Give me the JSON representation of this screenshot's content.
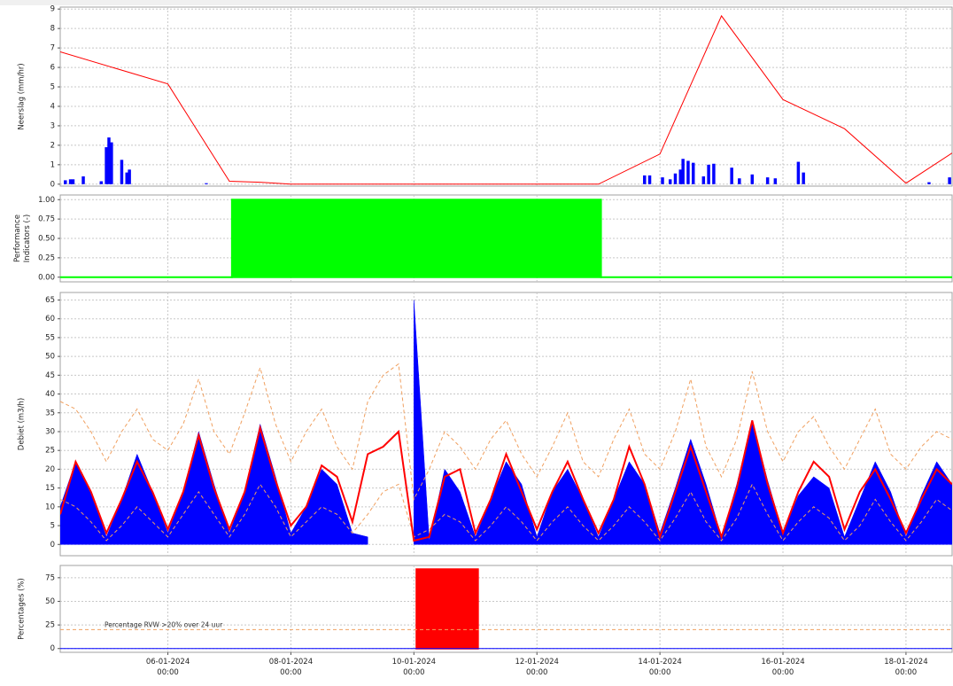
{
  "chart_data": [
    {
      "type": "combo",
      "ylabel": "Neerslag (mm/hr)",
      "ylim": [
        -0.1,
        9.1
      ],
      "yticks": [
        0,
        1,
        2,
        3,
        4,
        5,
        6,
        7,
        8,
        9
      ],
      "grid": true,
      "series": [
        {
          "type": "bar",
          "color": "#0000ff",
          "x": [
            "2024-01-04 08:00",
            "2024-01-04 10:00",
            "2024-01-04 11:00",
            "2024-01-04 15:00",
            "2024-01-04 22:00",
            "2024-01-05 00:00",
            "2024-01-05 01:00",
            "2024-01-05 02:00",
            "2024-01-05 06:00",
            "2024-01-05 08:00",
            "2024-01-05 09:00",
            "2024-01-06 15:00",
            "2024-01-13 18:00",
            "2024-01-13 20:00",
            "2024-01-14 01:00",
            "2024-01-14 04:00",
            "2024-01-14 06:00",
            "2024-01-14 08:00",
            "2024-01-14 09:00",
            "2024-01-14 11:00",
            "2024-01-14 13:00",
            "2024-01-14 17:00",
            "2024-01-14 19:00",
            "2024-01-14 21:00",
            "2024-01-15 04:00",
            "2024-01-15 07:00",
            "2024-01-15 12:00",
            "2024-01-15 18:00",
            "2024-01-15 21:00",
            "2024-01-16 06:00",
            "2024-01-16 08:00",
            "2024-01-18 09:00",
            "2024-01-18 17:00"
          ],
          "values": [
            0.2,
            0.25,
            0.25,
            0.4,
            0.15,
            1.9,
            2.4,
            2.15,
            1.25,
            0.6,
            0.75,
            0.05,
            0.45,
            0.45,
            0.35,
            0.25,
            0.55,
            0.75,
            1.3,
            1.2,
            1.1,
            0.4,
            1.0,
            1.05,
            0.85,
            0.3,
            0.5,
            0.35,
            0.3,
            1.15,
            0.6,
            0.1,
            0.35
          ]
        },
        {
          "type": "line",
          "color": "#ff0000",
          "x": [
            "2024-01-04 06:00",
            "2024-01-06 00:00",
            "2024-01-07 00:00",
            "2024-01-07 12:00",
            "2024-01-08 00:00",
            "2024-01-13 00:00",
            "2024-01-14 00:00",
            "2024-01-15 00:00",
            "2024-01-16 00:00",
            "2024-01-17 00:00",
            "2024-01-18 00:00",
            "2024-01-18 18:00"
          ],
          "values": [
            6.8,
            5.15,
            0.15,
            0.1,
            0,
            0,
            1.55,
            8.65,
            4.35,
            2.85,
            0.05,
            1.6
          ]
        }
      ]
    },
    {
      "type": "combo",
      "ylabel": "Performance Indicators (-)",
      "ylim": [
        -0.06,
        1.06
      ],
      "yticks": [
        {
          "value": 0,
          "label": "0.00"
        },
        {
          "value": 0.25,
          "label": "0.25"
        },
        {
          "value": 0.5,
          "label": "0.50"
        },
        {
          "value": 0.75,
          "label": "0.75"
        },
        {
          "value": 1,
          "label": "1.00"
        }
      ],
      "grid": true,
      "series": [
        {
          "type": "step",
          "color": "#00ff00",
          "edges": [
            "2024-01-04 06:00",
            "2024-01-07 01:00",
            "2024-01-13 01:00",
            "2024-01-18 18:00"
          ],
          "values": [
            0,
            1,
            0
          ]
        }
      ]
    },
    {
      "type": "combo",
      "ylabel": "Debiet (m3/h)",
      "ylim": [
        -3,
        67
      ],
      "yticks": [
        0,
        5,
        10,
        15,
        20,
        25,
        30,
        35,
        40,
        45,
        50,
        55,
        60,
        65
      ],
      "grid": true,
      "x": [
        "2024-01-04 06:00",
        "2024-01-04 12:00",
        "2024-01-04 18:00",
        "2024-01-05 00:00",
        "2024-01-05 06:00",
        "2024-01-05 12:00",
        "2024-01-05 18:00",
        "2024-01-06 00:00",
        "2024-01-06 06:00",
        "2024-01-06 12:00",
        "2024-01-06 18:00",
        "2024-01-07 00:00",
        "2024-01-07 06:00",
        "2024-01-07 12:00",
        "2024-01-07 18:00",
        "2024-01-08 00:00",
        "2024-01-08 06:00",
        "2024-01-08 12:00",
        "2024-01-08 18:00",
        "2024-01-09 00:00",
        "2024-01-09 06:00",
        "2024-01-09 12:00",
        "2024-01-09 18:00",
        "2024-01-10 00:00",
        "2024-01-10 06:00",
        "2024-01-10 12:00",
        "2024-01-10 18:00",
        "2024-01-11 00:00",
        "2024-01-11 06:00",
        "2024-01-11 12:00",
        "2024-01-11 18:00",
        "2024-01-12 00:00",
        "2024-01-12 06:00",
        "2024-01-12 12:00",
        "2024-01-12 18:00",
        "2024-01-13 00:00",
        "2024-01-13 06:00",
        "2024-01-13 12:00",
        "2024-01-13 18:00",
        "2024-01-14 00:00",
        "2024-01-14 06:00",
        "2024-01-14 12:00",
        "2024-01-14 18:00",
        "2024-01-15 00:00",
        "2024-01-15 06:00",
        "2024-01-15 12:00",
        "2024-01-15 18:00",
        "2024-01-16 00:00",
        "2024-01-16 06:00",
        "2024-01-16 12:00",
        "2024-01-16 18:00",
        "2024-01-17 00:00",
        "2024-01-17 06:00",
        "2024-01-17 12:00",
        "2024-01-17 18:00",
        "2024-01-18 00:00",
        "2024-01-18 06:00",
        "2024-01-18 12:00",
        "2024-01-18 18:00"
      ],
      "series": [
        {
          "type": "area",
          "color": "#0000ff",
          "values": [
            10,
            22,
            14,
            2,
            12,
            24,
            14,
            3,
            14,
            30,
            16,
            3,
            14,
            32,
            18,
            3,
            10,
            20,
            16,
            3,
            2,
            null,
            null,
            65,
            1,
            20,
            14,
            2,
            12,
            22,
            16,
            2,
            14,
            20,
            12,
            2,
            12,
            22,
            16,
            3,
            15,
            28,
            16,
            2,
            16,
            33,
            17,
            3,
            13,
            18,
            15,
            2,
            12,
            22,
            14,
            2,
            13,
            22,
            16
          ]
        },
        {
          "type": "line",
          "color": "#f0a060",
          "dash": true,
          "values": [
            38,
            36,
            30,
            22,
            30,
            36,
            28,
            25,
            32,
            44,
            30,
            24,
            35,
            47,
            32,
            22,
            30,
            36,
            26,
            20,
            38,
            45,
            48,
            12,
            20,
            30,
            26,
            20,
            28,
            33,
            24,
            18,
            26,
            35,
            22,
            18,
            28,
            36,
            24,
            20,
            30,
            44,
            26,
            18,
            28,
            46,
            30,
            22,
            30,
            34,
            26,
            20,
            28,
            36,
            24,
            20,
            26,
            30,
            28
          ]
        },
        {
          "type": "line",
          "color": "#f0a060",
          "dash": true,
          "values": [
            12,
            10,
            6,
            1,
            5,
            10,
            6,
            2,
            8,
            14,
            8,
            2,
            8,
            16,
            10,
            2,
            6,
            10,
            8,
            3,
            8,
            14,
            16,
            2,
            4,
            8,
            6,
            1,
            5,
            10,
            6,
            1,
            6,
            10,
            5,
            1,
            5,
            10,
            6,
            1,
            7,
            14,
            6,
            1,
            7,
            16,
            8,
            1,
            6,
            10,
            7,
            1,
            5,
            12,
            6,
            1,
            6,
            12,
            9
          ]
        },
        {
          "type": "line",
          "color": "#ff0000",
          "values": [
            8,
            22,
            14,
            3,
            12,
            22,
            14,
            4,
            14,
            29,
            15,
            4,
            14,
            31,
            17,
            5,
            10,
            21,
            18,
            6,
            24,
            26,
            30,
            1,
            2,
            18,
            20,
            3,
            12,
            24,
            14,
            4,
            14,
            22,
            12,
            3,
            12,
            26,
            16,
            2,
            14,
            26,
            14,
            2,
            15,
            33,
            16,
            3,
            14,
            22,
            18,
            4,
            14,
            20,
            12,
            3,
            12,
            20,
            16
          ]
        }
      ]
    },
    {
      "type": "combo",
      "ylabel": "Percentages (%)",
      "ylim": [
        -4,
        88
      ],
      "yticks": [
        0,
        25,
        50,
        75
      ],
      "grid": true,
      "annotation": "Percentage RVW >20% over 24 uur",
      "xlim": [
        "2024-01-04 06:00",
        "2024-01-18 18:00"
      ],
      "xticks": [
        {
          "value": "2024-01-06 00:00",
          "label": "06-01-2024 00:00"
        },
        {
          "value": "2024-01-08 00:00",
          "label": "08-01-2024 00:00"
        },
        {
          "value": "2024-01-10 00:00",
          "label": "10-01-2024 00:00"
        },
        {
          "value": "2024-01-12 00:00",
          "label": "12-01-2024 00:00"
        },
        {
          "value": "2024-01-14 00:00",
          "label": "14-01-2024 00:00"
        },
        {
          "value": "2024-01-16 00:00",
          "label": "16-01-2024 00:00"
        },
        {
          "value": "2024-01-18 00:00",
          "label": "18-01-2024 00:00"
        }
      ],
      "series": [
        {
          "type": "step",
          "color": "#ff0000",
          "edges": [
            "2024-01-10 01:00",
            "2024-01-11 01:00"
          ],
          "values": [
            84
          ]
        },
        {
          "type": "line",
          "color": "#0000ff",
          "x": [
            "2024-01-04 06:00",
            "2024-01-18 18:00"
          ],
          "values": [
            0,
            0
          ]
        },
        {
          "type": "line",
          "color": "#f0a060",
          "dash": true,
          "x": [
            "2024-01-04 06:00",
            "2024-01-18 18:00"
          ],
          "values": [
            20,
            20
          ]
        }
      ]
    }
  ]
}
